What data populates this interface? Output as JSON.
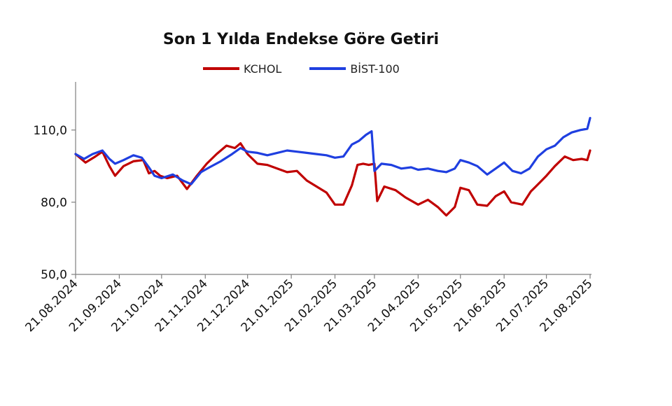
{
  "chart_data": {
    "type": "line",
    "title": "Son 1 Yılda Endekse Göre Getiri",
    "xlabel": "",
    "ylabel": "",
    "ylim": [
      50,
      130
    ],
    "yticks": [
      50,
      80,
      110
    ],
    "ytick_labels": [
      "50,0",
      "80,0",
      "110,0"
    ],
    "xtick_labels": [
      "21.08.2024",
      "21.09.2024",
      "21.10.2024",
      "21.11.2024",
      "21.12.2024",
      "21.01.2025",
      "21.02.2025",
      "21.03.2025",
      "21.04.2025",
      "21.05.2025",
      "21.06.2025",
      "21.07.2025",
      "21.08.2025"
    ],
    "legend_position": "top",
    "series": [
      {
        "name": "KCHOL",
        "color": "#c00000",
        "points": [
          [
            "21.08.2024",
            100
          ],
          [
            "28.08.2024",
            96.5
          ],
          [
            "04.09.2024",
            99
          ],
          [
            "09.09.2024",
            101
          ],
          [
            "14.09.2024",
            95
          ],
          [
            "18.09.2024",
            91
          ],
          [
            "24.09.2024",
            95
          ],
          [
            "01.10.2024",
            97
          ],
          [
            "08.10.2024",
            97.5
          ],
          [
            "12.10.2024",
            92
          ],
          [
            "16.10.2024",
            93
          ],
          [
            "20.10.2024",
            91
          ],
          [
            "25.10.2024",
            90
          ],
          [
            "01.11.2024",
            91
          ],
          [
            "08.11.2024",
            85.5
          ],
          [
            "15.11.2024",
            91
          ],
          [
            "22.11.2024",
            96
          ],
          [
            "29.11.2024",
            100
          ],
          [
            "06.12.2024",
            103.5
          ],
          [
            "12.12.2024",
            102.5
          ],
          [
            "16.12.2024",
            104.5
          ],
          [
            "21.12.2024",
            100
          ],
          [
            "28.12.2024",
            96
          ],
          [
            "04.01.2025",
            95.5
          ],
          [
            "11.01.2025",
            94
          ],
          [
            "18.01.2025",
            92.5
          ],
          [
            "25.01.2025",
            93
          ],
          [
            "01.02.2025",
            89
          ],
          [
            "08.02.2025",
            86.5
          ],
          [
            "15.02.2025",
            84
          ],
          [
            "21.02.2025",
            79
          ],
          [
            "27.02.2025",
            79
          ],
          [
            "05.03.2025",
            87
          ],
          [
            "09.03.2025",
            95.5
          ],
          [
            "13.03.2025",
            96
          ],
          [
            "17.03.2025",
            95.5
          ],
          [
            "21.03.2025",
            96
          ],
          [
            "23.03.2025",
            80.5
          ],
          [
            "28.03.2025",
            86.5
          ],
          [
            "05.04.2025",
            85
          ],
          [
            "12.04.2025",
            82
          ],
          [
            "21.04.2025",
            79
          ],
          [
            "28.04.2025",
            81
          ],
          [
            "05.05.2025",
            78
          ],
          [
            "11.05.2025",
            74.5
          ],
          [
            "17.05.2025",
            78
          ],
          [
            "21.05.2025",
            86
          ],
          [
            "27.05.2025",
            85
          ],
          [
            "02.06.2025",
            79
          ],
          [
            "09.06.2025",
            78.5
          ],
          [
            "15.06.2025",
            82.5
          ],
          [
            "21.06.2025",
            84.5
          ],
          [
            "26.06.2025",
            80
          ],
          [
            "04.07.2025",
            79
          ],
          [
            "10.07.2025",
            84.5
          ],
          [
            "16.07.2025",
            88
          ],
          [
            "21.07.2025",
            91
          ],
          [
            "27.07.2025",
            95
          ],
          [
            "03.08.2025",
            99
          ],
          [
            "09.08.2025",
            97.5
          ],
          [
            "15.08.2025",
            98
          ],
          [
            "19.08.2025",
            97.5
          ],
          [
            "21.08.2025",
            101.5
          ]
        ]
      },
      {
        "name": "BİST-100",
        "color": "#1f3fe0",
        "points": [
          [
            "21.08.2024",
            100
          ],
          [
            "27.08.2024",
            98
          ],
          [
            "02.09.2024",
            100
          ],
          [
            "09.09.2024",
            101.5
          ],
          [
            "14.09.2024",
            98
          ],
          [
            "18.09.2024",
            96
          ],
          [
            "24.09.2024",
            97.5
          ],
          [
            "01.10.2024",
            99.5
          ],
          [
            "07.10.2024",
            98.5
          ],
          [
            "12.10.2024",
            94.5
          ],
          [
            "16.10.2024",
            91
          ],
          [
            "21.10.2024",
            90
          ],
          [
            "29.10.2024",
            91.5
          ],
          [
            "05.11.2024",
            89
          ],
          [
            "11.11.2024",
            87.5
          ],
          [
            "18.11.2024",
            92.5
          ],
          [
            "24.11.2024",
            94.5
          ],
          [
            "02.12.2024",
            97
          ],
          [
            "10.12.2024",
            100
          ],
          [
            "16.12.2024",
            102.5
          ],
          [
            "21.12.2024",
            101
          ],
          [
            "28.12.2024",
            100.5
          ],
          [
            "04.01.2025",
            99.5
          ],
          [
            "11.01.2025",
            100.5
          ],
          [
            "18.01.2025",
            101.5
          ],
          [
            "25.01.2025",
            101
          ],
          [
            "01.02.2025",
            100.5
          ],
          [
            "08.02.2025",
            100
          ],
          [
            "15.02.2025",
            99.5
          ],
          [
            "21.02.2025",
            98.5
          ],
          [
            "27.02.2025",
            99
          ],
          [
            "05.03.2025",
            104
          ],
          [
            "10.03.2025",
            105.5
          ],
          [
            "15.03.2025",
            108
          ],
          [
            "19.03.2025",
            109.5
          ],
          [
            "21.03.2025",
            93
          ],
          [
            "26.03.2025",
            96
          ],
          [
            "02.04.2025",
            95.5
          ],
          [
            "09.04.2025",
            94
          ],
          [
            "16.04.2025",
            94.5
          ],
          [
            "21.04.2025",
            93.5
          ],
          [
            "28.04.2025",
            94
          ],
          [
            "05.05.2025",
            93
          ],
          [
            "11.05.2025",
            92.5
          ],
          [
            "17.05.2025",
            94
          ],
          [
            "21.05.2025",
            97.5
          ],
          [
            "27.05.2025",
            96.5
          ],
          [
            "02.06.2025",
            95
          ],
          [
            "09.06.2025",
            91.5
          ],
          [
            "15.06.2025",
            94
          ],
          [
            "21.06.2025",
            96.5
          ],
          [
            "27.06.2025",
            93
          ],
          [
            "03.07.2025",
            92
          ],
          [
            "09.07.2025",
            94
          ],
          [
            "15.07.2025",
            99
          ],
          [
            "21.07.2025",
            102
          ],
          [
            "27.07.2025",
            103.5
          ],
          [
            "02.08.2025",
            107
          ],
          [
            "08.08.2025",
            109
          ],
          [
            "14.08.2025",
            110
          ],
          [
            "19.08.2025",
            110.5
          ],
          [
            "21.08.2025",
            115
          ]
        ]
      }
    ]
  }
}
